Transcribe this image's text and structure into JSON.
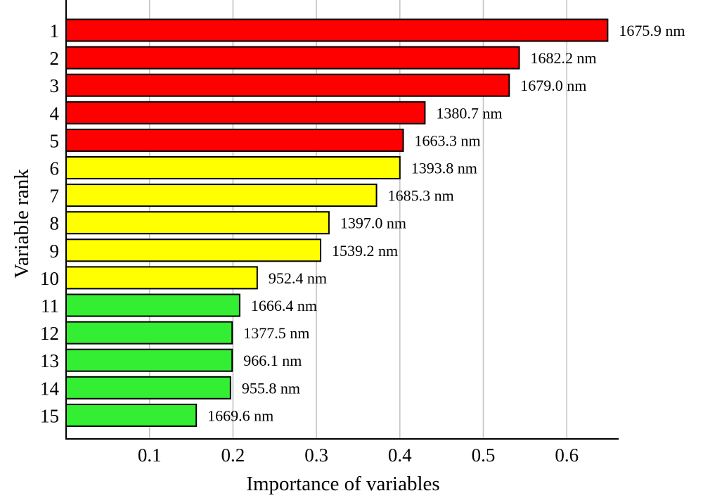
{
  "chart_data": {
    "type": "bar",
    "orientation": "horizontal",
    "xlabel": "Importance of variables",
    "ylabel": "Variable rank",
    "xlim": [
      0,
      0.66
    ],
    "xticks": [
      0.1,
      0.2,
      0.3,
      0.4,
      0.5,
      0.6
    ],
    "grid": "vertical",
    "categories": [
      "1",
      "2",
      "3",
      "4",
      "5",
      "6",
      "7",
      "8",
      "9",
      "10",
      "11",
      "12",
      "13",
      "14",
      "15"
    ],
    "values": [
      0.649,
      0.543,
      0.531,
      0.43,
      0.404,
      0.4,
      0.372,
      0.315,
      0.305,
      0.229,
      0.208,
      0.199,
      0.199,
      0.197,
      0.156
    ],
    "labels": [
      "1675.9 nm",
      "1682.2 nm",
      "1679.0 nm",
      "1380.7 nm",
      "1663.3 nm",
      "1393.8 nm",
      "1685.3 nm",
      "1397.0 nm",
      "1539.2 nm",
      "952.4 nm",
      "1666.4 nm",
      "1377.5 nm",
      "966.1 nm",
      "955.8 nm",
      "1669.6 nm"
    ],
    "colors": [
      "#ff0000",
      "#ff0000",
      "#ff0000",
      "#ff0000",
      "#ff0000",
      "#ffff00",
      "#ffff00",
      "#ffff00",
      "#ffff00",
      "#ffff00",
      "#33ee33",
      "#33ee33",
      "#33ee33",
      "#33ee33",
      "#33ee33"
    ]
  }
}
